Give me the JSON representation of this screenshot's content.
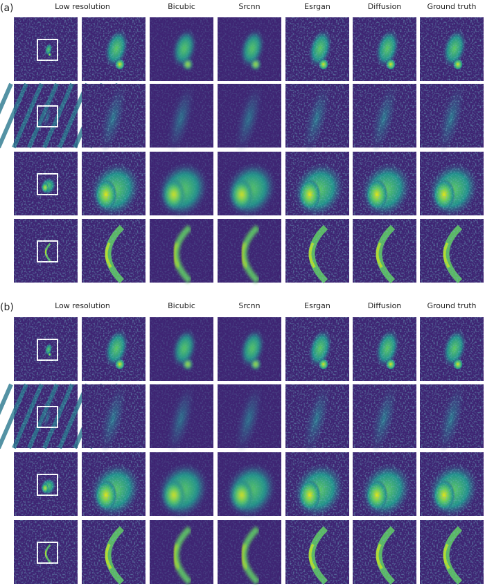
{
  "panels": [
    {
      "label": "(a)",
      "columns": [
        "Low resolution",
        "Bicubic",
        "Srcnn",
        "Esrgan",
        "Diffusion",
        "Ground truth"
      ]
    },
    {
      "label": "(b)",
      "columns": [
        "Low resolution",
        "Bicubic",
        "Srcnn",
        "Esrgan",
        "Diffusion",
        "Ground truth"
      ]
    }
  ]
}
